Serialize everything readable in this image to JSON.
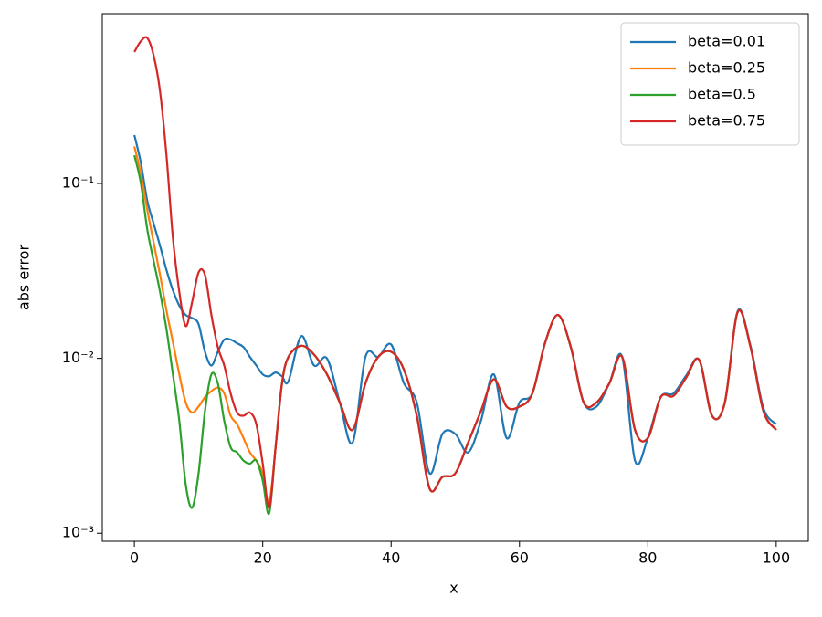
{
  "chart_data": {
    "type": "line",
    "xlabel": "x",
    "ylabel": "abs error",
    "x": [
      0,
      1,
      2,
      3,
      4,
      5,
      6,
      7,
      8,
      9,
      10,
      11,
      12,
      13,
      14,
      15,
      16,
      17,
      18,
      19,
      20,
      21,
      22,
      23,
      24,
      26,
      28,
      30,
      32,
      34,
      36,
      38,
      40,
      42,
      44,
      46,
      48,
      50,
      52,
      54,
      56,
      58,
      60,
      62,
      64,
      66,
      68,
      70,
      72,
      74,
      76,
      78,
      80,
      82,
      84,
      86,
      88,
      90,
      92,
      94,
      96,
      98,
      100
    ],
    "series": [
      {
        "name": "beta=0.01",
        "color": "#1f77b4",
        "values": [
          0.189,
          0.132,
          0.08,
          0.059,
          0.044,
          0.032,
          0.0245,
          0.02,
          0.0177,
          0.017,
          0.0157,
          0.0109,
          0.0091,
          0.0109,
          0.0128,
          0.0128,
          0.0122,
          0.0116,
          0.0102,
          0.0091,
          0.0081,
          0.0079,
          0.0083,
          0.0079,
          0.0074,
          0.0134,
          0.0091,
          0.01,
          0.0056,
          0.0033,
          0.0102,
          0.0102,
          0.012,
          0.0072,
          0.0056,
          0.0022,
          0.0037,
          0.0037,
          0.0029,
          0.0044,
          0.0081,
          0.0035,
          0.0056,
          0.0063,
          0.0123,
          0.0177,
          0.0116,
          0.0056,
          0.0053,
          0.0072,
          0.0102,
          0.0026,
          0.0035,
          0.006,
          0.0063,
          0.008,
          0.0098,
          0.0047,
          0.0056,
          0.0186,
          0.0118,
          0.0052,
          0.0042
        ]
      },
      {
        "name": "beta=0.25",
        "color": "#ff7f0e",
        "values": [
          0.163,
          0.114,
          0.071,
          0.046,
          0.03,
          0.0188,
          0.0124,
          0.0081,
          0.0056,
          0.0049,
          0.0053,
          0.006,
          0.0065,
          0.0068,
          0.0063,
          0.0047,
          0.0042,
          0.0035,
          0.0029,
          0.0026,
          0.0022,
          0.0015,
          0.0031,
          0.0072,
          0.0102,
          0.0118,
          0.0105,
          0.0081,
          0.0056,
          0.0039,
          0.0072,
          0.0102,
          0.0109,
          0.0086,
          0.0047,
          0.0018,
          0.0021,
          0.0022,
          0.0033,
          0.005,
          0.0076,
          0.0053,
          0.0053,
          0.0063,
          0.0123,
          0.0177,
          0.0116,
          0.0056,
          0.0056,
          0.0072,
          0.0102,
          0.0039,
          0.0035,
          0.006,
          0.0061,
          0.0078,
          0.0098,
          0.0047,
          0.0056,
          0.0184,
          0.0116,
          0.005,
          0.0039
        ]
      },
      {
        "name": "beta=0.5",
        "color": "#2ca02c",
        "values": [
          0.145,
          0.101,
          0.055,
          0.036,
          0.024,
          0.0147,
          0.0081,
          0.0044,
          0.0019,
          0.0014,
          0.0022,
          0.005,
          0.0081,
          0.0072,
          0.0044,
          0.0031,
          0.0029,
          0.0026,
          0.0025,
          0.0026,
          0.002,
          0.0013,
          0.0031,
          0.0072,
          0.0102,
          0.0118,
          0.0105,
          0.0081,
          0.0056,
          0.0039,
          0.0072,
          0.0102,
          0.0109,
          0.0086,
          0.0047,
          0.0018,
          0.0021,
          0.0022,
          0.0033,
          0.005,
          0.0076,
          0.0053,
          0.0053,
          0.0063,
          0.0123,
          0.0177,
          0.0116,
          0.0056,
          0.0056,
          0.0072,
          0.0102,
          0.0039,
          0.0035,
          0.006,
          0.0061,
          0.0078,
          0.0098,
          0.0047,
          0.0056,
          0.0184,
          0.0116,
          0.005,
          0.0039
        ]
      },
      {
        "name": "beta=0.75",
        "color": "#d62728",
        "values": [
          0.565,
          0.65,
          0.68,
          0.54,
          0.336,
          0.145,
          0.049,
          0.024,
          0.0153,
          0.021,
          0.031,
          0.03,
          0.0177,
          0.0116,
          0.0091,
          0.0063,
          0.0049,
          0.0047,
          0.0049,
          0.0042,
          0.0025,
          0.0014,
          0.0031,
          0.0072,
          0.0102,
          0.0118,
          0.0105,
          0.0081,
          0.0056,
          0.0039,
          0.0072,
          0.0102,
          0.0109,
          0.0086,
          0.0047,
          0.0018,
          0.0021,
          0.0022,
          0.0033,
          0.005,
          0.0076,
          0.0053,
          0.0053,
          0.0063,
          0.0123,
          0.0177,
          0.0116,
          0.0056,
          0.0056,
          0.0072,
          0.0102,
          0.0039,
          0.0035,
          0.006,
          0.0061,
          0.0078,
          0.0098,
          0.0047,
          0.0056,
          0.0184,
          0.0116,
          0.005,
          0.0039
        ]
      }
    ],
    "xlim": [
      -5,
      105
    ],
    "xticks": [
      0,
      20,
      40,
      60,
      80,
      100
    ],
    "ylim": [
      0.0009,
      0.935
    ],
    "log_y": true,
    "yticks": [
      {
        "value": 0.001,
        "label": "10⁻³"
      },
      {
        "value": 0.01,
        "label": "10⁻²"
      },
      {
        "value": 0.1,
        "label": "10⁻¹"
      }
    ],
    "legend": "upper right",
    "grid": false
  }
}
